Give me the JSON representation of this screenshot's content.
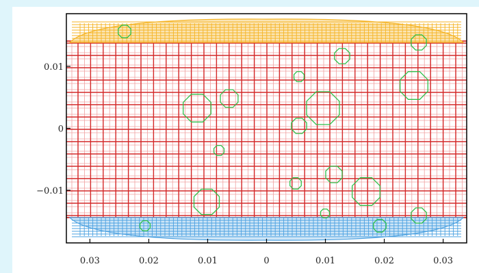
{
  "figure": {
    "x_tick_labels": [
      "0.03",
      "0.02",
      "0.01",
      "0",
      "0.01",
      "0.02",
      "0.03"
    ],
    "y_tick_labels": [
      "0.01",
      "0",
      "−0.01"
    ],
    "x_ticks": [
      -0.03,
      -0.02,
      -0.01,
      0,
      0.01,
      0.02,
      0.03
    ],
    "y_ticks": [
      0.01,
      0,
      -0.01
    ],
    "xlim": [
      -0.034,
      0.034
    ],
    "ylim": [
      -0.0185,
      0.0185
    ]
  },
  "colors": {
    "background": "#dff5fb",
    "panel": "#ffffff",
    "mesh_major": "#d42828",
    "mesh_minor": "#f0a0a0",
    "top_band": "#f5b323",
    "bottom_band": "#4aa0e0",
    "contour": "#2ec04a",
    "frame": "#000000"
  }
}
